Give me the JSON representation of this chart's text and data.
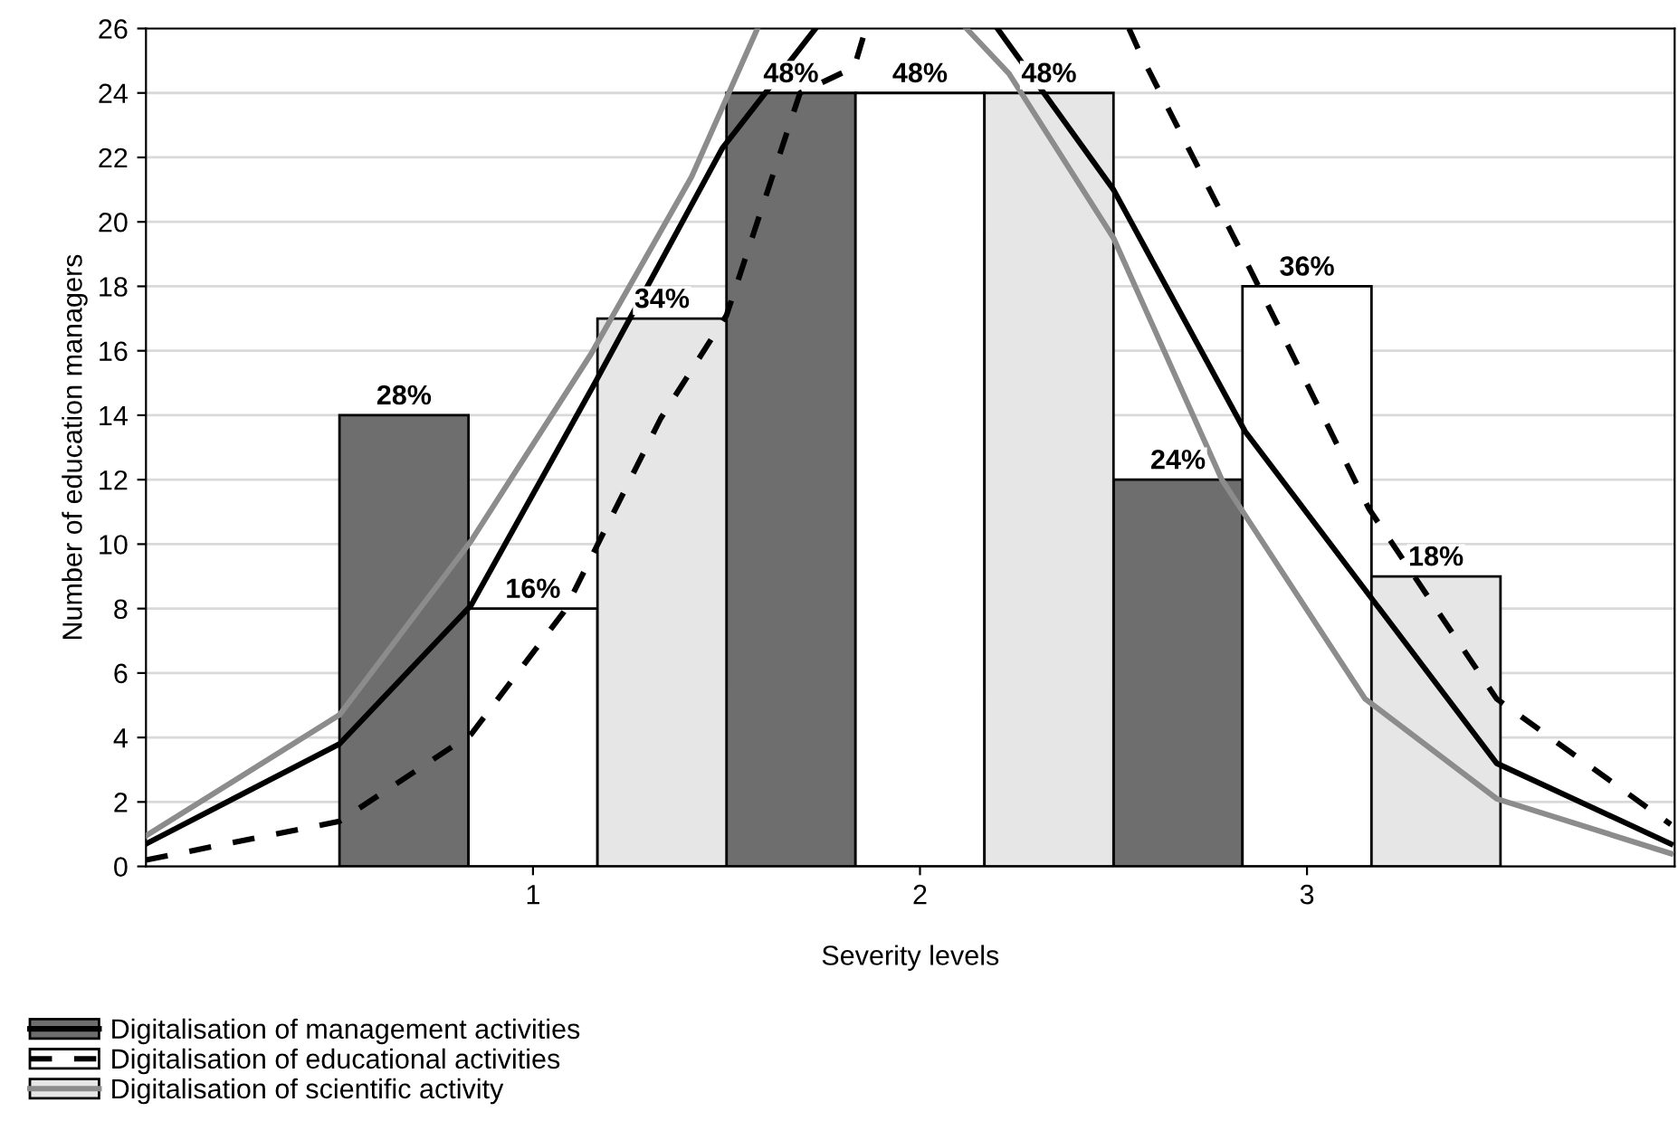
{
  "chart_data": {
    "type": "bar",
    "xlabel": "Severity levels",
    "ylabel": "Number of education managers",
    "x": [
      1,
      2,
      3
    ],
    "xlim": [
      0,
      3.95
    ],
    "xticks": [
      1,
      2,
      3
    ],
    "ylim": [
      0,
      26
    ],
    "yticks": [
      0,
      2,
      4,
      6,
      8,
      10,
      12,
      14,
      16,
      18,
      20,
      22,
      24,
      26
    ],
    "grid": "y",
    "legend": "bottom left",
    "annotations": [
      "28%",
      "48%",
      "24%",
      "16%",
      "48%",
      "36%",
      "34%",
      "48%",
      "18%"
    ],
    "series": [
      {
        "name": "Digitalisation of management activities",
        "color": "#6e6e6e",
        "values": [
          14,
          24,
          12
        ]
      },
      {
        "name": "Digitalisation of educational activities",
        "color": "#ffffff",
        "values": [
          8,
          24,
          18
        ]
      },
      {
        "name": "Digitalisation of scientific activity",
        "color": "#e6e6e6",
        "values": [
          17,
          24,
          9
        ]
      },
      {
        "type": "line",
        "color": "#000000",
        "line_style": "solid",
        "x": [
          0,
          0.5,
          0.84,
          1.16,
          1.49,
          1.73,
          1.97,
          2.2,
          2.5,
          2.84,
          3.49,
          3.94
        ],
        "values": [
          0.7,
          3.8,
          8.1,
          15.0,
          22.3,
          26,
          null,
          26,
          21.0,
          13.5,
          3.2,
          0.7
        ]
      },
      {
        "type": "line",
        "color": "#000000",
        "line_style": "dashed",
        "x": [
          0,
          0.5,
          0.84,
          1.08,
          1.33,
          1.5,
          1.69,
          1.83,
          1.86,
          2.2,
          2.54,
          2.57,
          2.85,
          3.16,
          3.49,
          3.94
        ],
        "values": [
          0.2,
          1.4,
          4.1,
          7.9,
          13.9,
          17.1,
          24.0,
          24.8,
          26,
          null,
          26,
          25.2,
          18.6,
          11.1,
          5.2,
          1.3
        ]
      },
      {
        "type": "line",
        "color": "#8c8c8c",
        "line_style": "solid",
        "x": [
          0,
          0.5,
          0.84,
          1.15,
          1.41,
          1.58,
          1.85,
          2.12,
          2.23,
          2.5,
          2.78,
          2.84,
          3.15,
          3.49,
          3.94
        ],
        "values": [
          0.95,
          4.7,
          10.1,
          15.9,
          21.4,
          26,
          null,
          26,
          24.6,
          19.5,
          12.0,
          10.9,
          5.2,
          2.1,
          0.4
        ]
      }
    ]
  }
}
